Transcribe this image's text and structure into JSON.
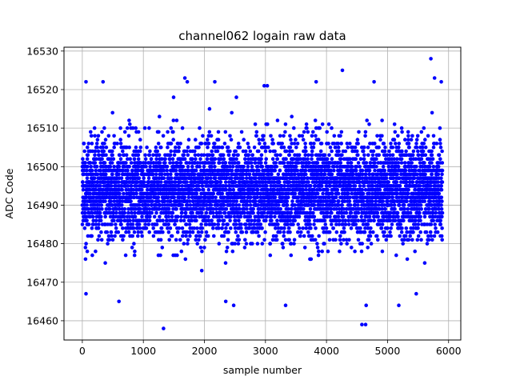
{
  "chart_data": {
    "type": "scatter",
    "title": "channel062 logain raw data",
    "xlabel": "sample number",
    "ylabel": "ADC Code",
    "xlim": [
      -300,
      6200
    ],
    "ylim": [
      16455,
      16531
    ],
    "xticks": [
      0,
      1000,
      2000,
      3000,
      4000,
      5000,
      6000
    ],
    "yticks": [
      16460,
      16470,
      16480,
      16490,
      16500,
      16510,
      16520,
      16530
    ],
    "grid": true,
    "marker_color": "#0000ff",
    "n_points": 5900,
    "value_center": 16494,
    "value_spread": 10,
    "highlighted_points": [
      {
        "x": 60,
        "y": 16522
      },
      {
        "x": 60,
        "y": 16467
      },
      {
        "x": 340,
        "y": 16522
      },
      {
        "x": 600,
        "y": 16465
      },
      {
        "x": 1330,
        "y": 16458
      },
      {
        "x": 1680,
        "y": 16523
      },
      {
        "x": 1720,
        "y": 16522
      },
      {
        "x": 2170,
        "y": 16522
      },
      {
        "x": 2350,
        "y": 16465
      },
      {
        "x": 2480,
        "y": 16464
      },
      {
        "x": 2980,
        "y": 16521
      },
      {
        "x": 3030,
        "y": 16521
      },
      {
        "x": 3330,
        "y": 16464
      },
      {
        "x": 3830,
        "y": 16522
      },
      {
        "x": 4260,
        "y": 16525
      },
      {
        "x": 4580,
        "y": 16459
      },
      {
        "x": 4640,
        "y": 16459
      },
      {
        "x": 4650,
        "y": 16464
      },
      {
        "x": 4780,
        "y": 16522
      },
      {
        "x": 5470,
        "y": 16467
      },
      {
        "x": 5710,
        "y": 16528
      },
      {
        "x": 5770,
        "y": 16523
      },
      {
        "x": 5880,
        "y": 16522
      }
    ]
  }
}
